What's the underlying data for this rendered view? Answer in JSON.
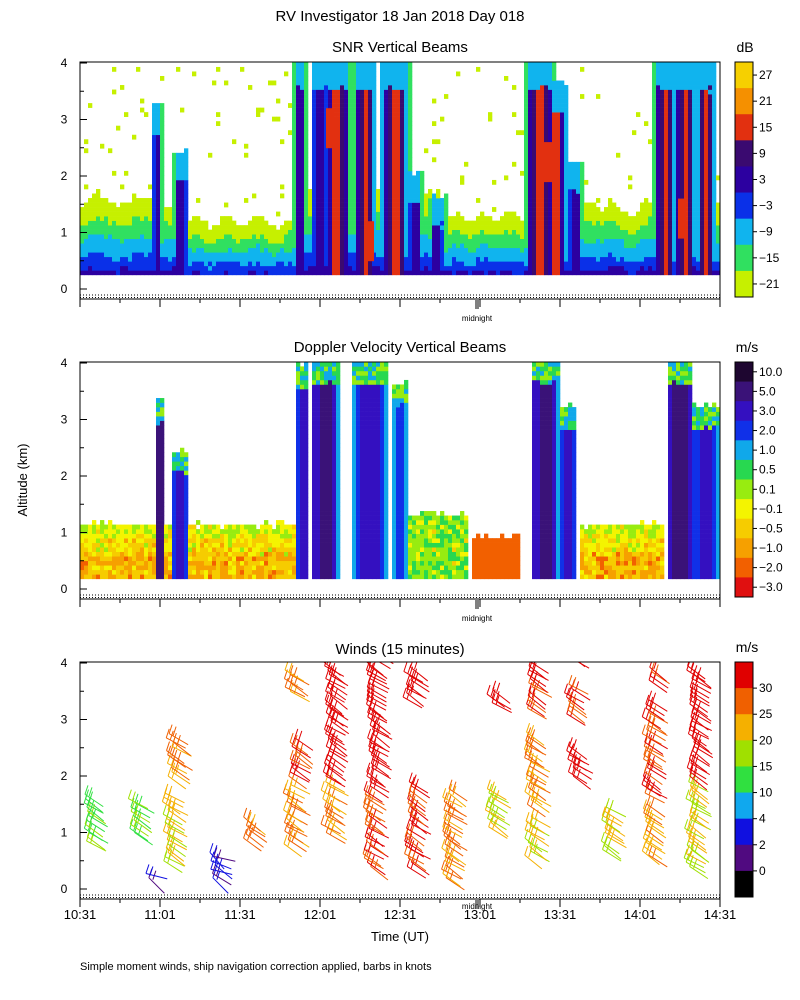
{
  "page": {
    "title": "RV Investigator  18 Jan 2018 Day 018",
    "ylabel": "Altitude (km)",
    "xlabel": "Time (UT)",
    "footnote": "Simple moment winds, ship navigation correction applied, barbs in knots",
    "midnight_label": "midnight"
  },
  "chart_data": [
    {
      "type": "heatmap",
      "title": "SNR Vertical Beams",
      "ylim": [
        0,
        4
      ],
      "yticks": [
        "0",
        "1",
        "2",
        "3",
        "4"
      ],
      "colorbar": {
        "unit": "dB",
        "labels": [
          "27",
          "21",
          "15",
          "9",
          "3",
          "−3",
          "−9",
          "−15",
          "−21"
        ],
        "colors": [
          "#f6d000",
          "#f59000",
          "#e23010",
          "#3a0a70",
          "#2c00a0",
          "#0a30e8",
          "#10b4ee",
          "#30e060",
          "#c6f000"
        ]
      }
    },
    {
      "type": "heatmap",
      "title": "Doppler Velocity Vertical Beams",
      "ylim": [
        0,
        4
      ],
      "yticks": [
        "0",
        "1",
        "2",
        "3",
        "4"
      ],
      "colorbar": {
        "unit": "m/s",
        "labels": [
          "10.0",
          "5.0",
          "3.0",
          "2.0",
          "1.0",
          "0.5",
          "0.1",
          "−0.1",
          "−0.5",
          "−1.0",
          "−2.0",
          "−3.0"
        ],
        "colors": [
          "#1e0630",
          "#3a1278",
          "#3410c0",
          "#1030e8",
          "#10a8ea",
          "#28d850",
          "#98ec10",
          "#f4f400",
          "#f6cc00",
          "#f6a000",
          "#f26000",
          "#e01010"
        ]
      }
    },
    {
      "type": "scatter",
      "title": "Winds (15 minutes)",
      "ylim": [
        0,
        4
      ],
      "yticks": [
        "0",
        "1",
        "2",
        "3",
        "4"
      ],
      "xticks": [
        "10:31",
        "11:01",
        "11:31",
        "12:01",
        "12:31",
        "13:01",
        "13:31",
        "14:01",
        "14:31"
      ],
      "colorbar": {
        "unit": "m/s",
        "labels": [
          "30",
          "25",
          "20",
          "15",
          "10",
          "4",
          "2",
          "0"
        ],
        "colors": [
          "#e00000",
          "#f06000",
          "#f5b000",
          "#a0e000",
          "#30e040",
          "#10a8ee",
          "#1010e0",
          "#500a80",
          "#000000"
        ]
      }
    }
  ]
}
